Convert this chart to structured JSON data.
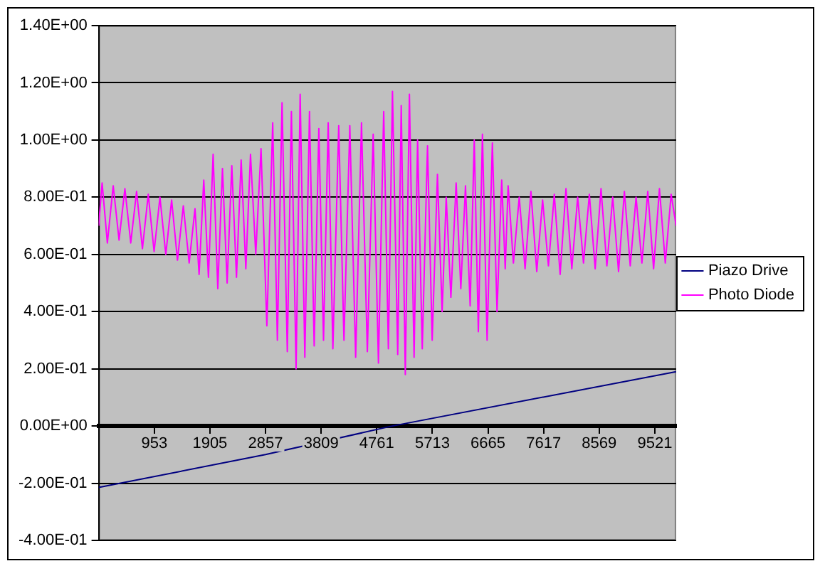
{
  "chart_data": {
    "type": "line",
    "legend": "right",
    "grid": "y",
    "marker": "none",
    "line_style": "solid",
    "xlim": [
      1,
      9886
    ],
    "xticks": [
      953,
      1905,
      2857,
      3809,
      4761,
      5713,
      6665,
      7617,
      8569,
      9521
    ],
    "ylim": [
      -0.4,
      1.4
    ],
    "yticks": [
      {
        "value": -0.4,
        "label": "-4.00E-01"
      },
      {
        "value": -0.2,
        "label": "-2.00E-01"
      },
      {
        "value": 0,
        "label": "0.00E+00"
      },
      {
        "value": 0.2,
        "label": "2.00E-01"
      },
      {
        "value": 0.4,
        "label": "4.00E-01"
      },
      {
        "value": 0.6,
        "label": "6.00E-01"
      },
      {
        "value": 0.8,
        "label": "8.00E-01"
      },
      {
        "value": 1.0,
        "label": "1.00E+00"
      },
      {
        "value": 1.2,
        "label": "1.20E+00"
      },
      {
        "value": 1.4,
        "label": "1.40E+00"
      }
    ],
    "series": [
      {
        "name": "Piazo Drive",
        "color": "#000080",
        "x": [
          1,
          2857,
          5026,
          9886
        ],
        "values": [
          -0.215,
          -0.1,
          0,
          0.19
        ]
      },
      {
        "name": "Photo Diode",
        "color": "#ff00ff",
        "x": [
          1,
          60,
          150,
          250,
          350,
          450,
          550,
          650,
          750,
          850,
          950,
          1050,
          1150,
          1250,
          1350,
          1450,
          1550,
          1650,
          1720,
          1800,
          1880,
          1960,
          2040,
          2120,
          2200,
          2280,
          2360,
          2440,
          2520,
          2600,
          2690,
          2780,
          2880,
          2980,
          3060,
          3140,
          3230,
          3300,
          3380,
          3450,
          3530,
          3610,
          3690,
          3770,
          3850,
          3930,
          4010,
          4110,
          4200,
          4300,
          4400,
          4500,
          4600,
          4700,
          4790,
          4880,
          4960,
          5030,
          5120,
          5180,
          5250,
          5320,
          5400,
          5460,
          5540,
          5630,
          5710,
          5800,
          5880,
          5950,
          6030,
          6120,
          6200,
          6280,
          6360,
          6430,
          6500,
          6570,
          6650,
          6740,
          6820,
          6900,
          6960,
          7010,
          7100,
          7200,
          7300,
          7400,
          7500,
          7600,
          7700,
          7800,
          7900,
          8000,
          8100,
          8200,
          8300,
          8400,
          8500,
          8600,
          8700,
          8800,
          8900,
          9000,
          9100,
          9200,
          9300,
          9400,
          9500,
          9600,
          9700,
          9800,
          9886
        ],
        "values": [
          0.7,
          0.85,
          0.64,
          0.84,
          0.65,
          0.83,
          0.64,
          0.82,
          0.62,
          0.81,
          0.61,
          0.8,
          0.6,
          0.79,
          0.58,
          0.77,
          0.57,
          0.76,
          0.53,
          0.86,
          0.52,
          0.95,
          0.48,
          0.9,
          0.5,
          0.91,
          0.52,
          0.93,
          0.55,
          0.95,
          0.6,
          0.97,
          0.35,
          1.06,
          0.3,
          1.13,
          0.26,
          1.1,
          0.2,
          1.16,
          0.24,
          1.1,
          0.28,
          1.04,
          0.3,
          1.06,
          0.27,
          1.05,
          0.3,
          1.05,
          0.24,
          1.06,
          0.26,
          1.02,
          0.22,
          1.1,
          0.27,
          1.17,
          0.25,
          1.12,
          0.18,
          1.16,
          0.24,
          1.0,
          0.27,
          0.98,
          0.3,
          0.88,
          0.4,
          0.8,
          0.45,
          0.85,
          0.48,
          0.84,
          0.42,
          1.0,
          0.33,
          1.02,
          0.3,
          0.99,
          0.4,
          0.86,
          0.55,
          0.84,
          0.57,
          0.8,
          0.55,
          0.82,
          0.54,
          0.79,
          0.56,
          0.81,
          0.53,
          0.83,
          0.55,
          0.8,
          0.57,
          0.81,
          0.55,
          0.83,
          0.56,
          0.8,
          0.54,
          0.82,
          0.56,
          0.8,
          0.57,
          0.82,
          0.55,
          0.83,
          0.57,
          0.81,
          0.7
        ]
      }
    ]
  }
}
